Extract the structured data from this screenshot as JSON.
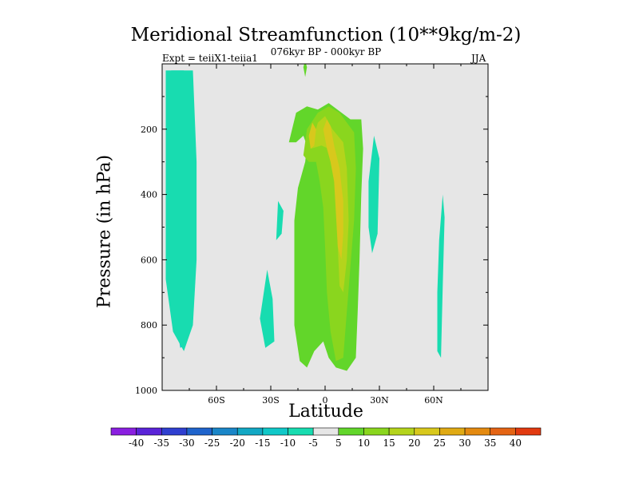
{
  "header": {
    "title": "Meridional Streamfunction (10**9kg/m-2)",
    "left_string": "Expt = teiiX1-teiia1",
    "center_string": "076kyr BP - 000kyr BP",
    "right_string": "JJA"
  },
  "chart_data": {
    "type": "heatmap",
    "title": "Meridional Streamfunction (10**9kg/m-2)",
    "xlabel": "Latitude",
    "ylabel": "Pressure (in hPa)",
    "xlim": [
      -90,
      90
    ],
    "ylim": [
      1000,
      0
    ],
    "x_ticks": [
      {
        "value": -60,
        "label": "60S"
      },
      {
        "value": -30,
        "label": "30S"
      },
      {
        "value": 0,
        "label": "0"
      },
      {
        "value": 30,
        "label": "30N"
      },
      {
        "value": 60,
        "label": "60N"
      }
    ],
    "y_ticks": [
      {
        "value": 200,
        "label": "200"
      },
      {
        "value": 400,
        "label": "400"
      },
      {
        "value": 600,
        "label": "600"
      },
      {
        "value": 800,
        "label": "800"
      },
      {
        "value": 1000,
        "label": "1000"
      }
    ],
    "colorbar": {
      "labels": [
        "-40",
        "-35",
        "-30",
        "-25",
        "-20",
        "-15",
        "-10",
        "-5",
        "5",
        "10",
        "15",
        "20",
        "25",
        "30",
        "35",
        "40"
      ],
      "colors": [
        "#8a1fe0",
        "#5a23d8",
        "#2f3fd0",
        "#1f64cc",
        "#1a86c8",
        "#12a8c4",
        "#10c8c8",
        "#18dcb0",
        "#e6e6e6",
        "#62d62a",
        "#8ad61e",
        "#b4d41c",
        "#d8c81c",
        "#e0aa14",
        "#e48a10",
        "#e46414",
        "#e23a10"
      ],
      "placement": "bottom"
    },
    "background_color": "#e6e6e6",
    "contours": [
      {
        "level": -10,
        "color": "#10c8c8",
        "points": [
          [
            -85,
            20
          ],
          [
            -78,
            20
          ],
          [
            -74,
            100
          ],
          [
            -73,
            260
          ],
          [
            -73,
            560
          ],
          [
            -74,
            760
          ],
          [
            -77,
            860
          ],
          [
            -80,
            870
          ],
          [
            -82,
            800
          ],
          [
            -85,
            680
          ]
        ]
      },
      {
        "level": -5,
        "color": "#18dcb0",
        "points": [
          [
            -88,
            20
          ],
          [
            -73,
            20
          ],
          [
            -71,
            300
          ],
          [
            -71,
            600
          ],
          [
            -73,
            800
          ],
          [
            -78,
            880
          ],
          [
            -84,
            820
          ],
          [
            -88,
            660
          ]
        ]
      },
      {
        "level": -5,
        "color": "#18dcb0",
        "points": [
          [
            -36,
            780
          ],
          [
            -32,
            630
          ],
          [
            -29,
            720
          ],
          [
            -28,
            850
          ],
          [
            -33,
            870
          ]
        ]
      },
      {
        "level": -5,
        "color": "#18dcb0",
        "points": [
          [
            -27,
            540
          ],
          [
            -26,
            420
          ],
          [
            -23,
            450
          ],
          [
            -24,
            520
          ]
        ]
      },
      {
        "level": -5,
        "color": "#18dcb0",
        "points": [
          [
            24,
            360
          ],
          [
            27,
            220
          ],
          [
            30,
            290
          ],
          [
            29,
            520
          ],
          [
            26,
            580
          ],
          [
            24,
            500
          ]
        ]
      },
      {
        "level": -5,
        "color": "#18dcb0",
        "points": [
          [
            63,
            540
          ],
          [
            65,
            400
          ],
          [
            66,
            470
          ],
          [
            65,
            680
          ],
          [
            64,
            900
          ],
          [
            62,
            880
          ],
          [
            62,
            700
          ]
        ]
      },
      {
        "level": 5,
        "color": "#62d62a",
        "points": [
          [
            -20,
            240
          ],
          [
            -16,
            150
          ],
          [
            -10,
            130
          ],
          [
            -4,
            140
          ],
          [
            2,
            120
          ],
          [
            14,
            170
          ],
          [
            20,
            170
          ],
          [
            21,
            260
          ],
          [
            20,
            400
          ],
          [
            19,
            600
          ],
          [
            18,
            760
          ],
          [
            17,
            900
          ],
          [
            12,
            940
          ],
          [
            6,
            930
          ],
          [
            2,
            900
          ],
          [
            -1,
            850
          ],
          [
            -6,
            880
          ],
          [
            -10,
            930
          ],
          [
            -14,
            910
          ],
          [
            -17,
            800
          ],
          [
            -17,
            600
          ],
          [
            -17,
            480
          ],
          [
            -15,
            380
          ],
          [
            -11,
            300
          ],
          [
            -10,
            250
          ],
          [
            -12,
            220
          ],
          [
            -16,
            240
          ]
        ]
      },
      {
        "level": 10,
        "color": "#8ad61e",
        "points": [
          [
            -12,
            280
          ],
          [
            -10,
            200
          ],
          [
            -4,
            150
          ],
          [
            2,
            130
          ],
          [
            8,
            150
          ],
          [
            16,
            210
          ],
          [
            17,
            320
          ],
          [
            16,
            480
          ],
          [
            14,
            620
          ],
          [
            12,
            760
          ],
          [
            10,
            900
          ],
          [
            6,
            910
          ],
          [
            3,
            820
          ],
          [
            1,
            700
          ],
          [
            0,
            560
          ],
          [
            -1,
            440
          ],
          [
            -3,
            360
          ],
          [
            -5,
            300
          ],
          [
            -9,
            300
          ]
        ]
      },
      {
        "level": 15,
        "color": "#b4d41c",
        "points": [
          [
            -8,
            260
          ],
          [
            -4,
            180
          ],
          [
            0,
            160
          ],
          [
            4,
            200
          ],
          [
            10,
            240
          ],
          [
            12,
            320
          ],
          [
            13,
            480
          ],
          [
            12,
            600
          ],
          [
            10,
            700
          ],
          [
            8,
            680
          ],
          [
            7,
            560
          ],
          [
            6,
            440
          ],
          [
            5,
            320
          ],
          [
            2,
            260
          ],
          [
            -2,
            250
          ]
        ]
      },
      {
        "level": 20,
        "color": "#d8c81c",
        "points": [
          [
            -1,
            200
          ],
          [
            1,
            170
          ],
          [
            3,
            190
          ],
          [
            5,
            250
          ],
          [
            8,
            320
          ],
          [
            10,
            420
          ],
          [
            10,
            520
          ],
          [
            9,
            600
          ],
          [
            7,
            560
          ],
          [
            6,
            460
          ],
          [
            5,
            360
          ],
          [
            3,
            300
          ],
          [
            1,
            260
          ]
        ]
      },
      {
        "level": 20,
        "color": "#d8c81c",
        "points": [
          [
            -9,
            220
          ],
          [
            -7,
            180
          ],
          [
            -5,
            200
          ],
          [
            -6,
            250
          ],
          [
            -8,
            260
          ]
        ]
      },
      {
        "level": 5,
        "color": "#62d62a",
        "points": [
          [
            -12,
            10
          ],
          [
            -11,
            -10
          ],
          [
            -10,
            10
          ],
          [
            -11,
            40
          ]
        ]
      }
    ],
    "grid": false,
    "legend": "none"
  }
}
